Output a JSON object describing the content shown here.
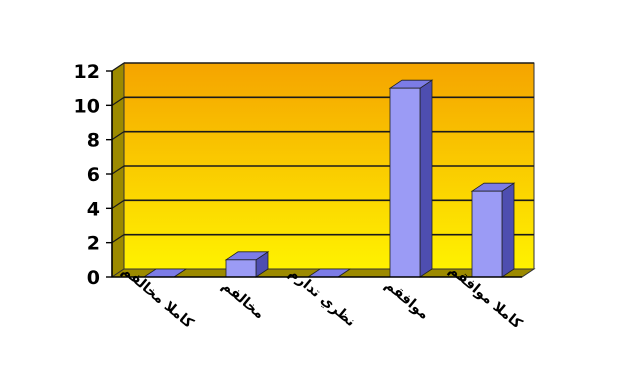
{
  "chart_data": {
    "type": "bar",
    "categories": [
      "كاملا مخالفم",
      "مخالفم",
      "نظري تدارم",
      "موافقم",
      "كاملا موافقم"
    ],
    "values": [
      0,
      1,
      0,
      11,
      5
    ],
    "ylim": [
      0,
      12
    ],
    "yticks": [
      0,
      2,
      4,
      6,
      8,
      10,
      12
    ],
    "ytick_labels": [
      "0",
      "2",
      "4",
      "6",
      "8",
      "10",
      "12"
    ],
    "grid": true,
    "legend": "none",
    "style": "3d",
    "colors": {
      "bar_front": "#9B9BF5",
      "bar_side": "#4E4EB0",
      "bar_top": "#7C7CE6",
      "plot_top": "#F5A400",
      "plot_bottom": "#FFF200",
      "gridline": "#1A1A1A",
      "wall": "#9C8A00",
      "text": "#000000"
    }
  }
}
